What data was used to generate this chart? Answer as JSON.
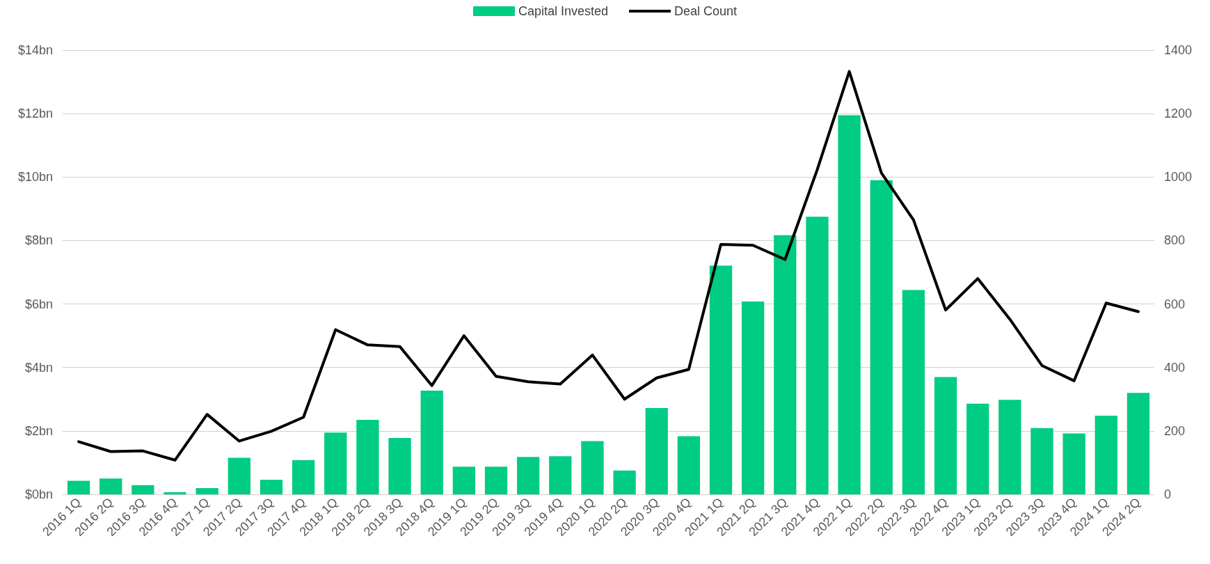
{
  "chart_data": {
    "type": "bar",
    "categories": [
      "2016 1Q",
      "2016 2Q",
      "2016 3Q",
      "2016 4Q",
      "2017 1Q",
      "2017 2Q",
      "2017 3Q",
      "2017 4Q",
      "2018 1Q",
      "2018 2Q",
      "2018 3Q",
      "2018 4Q",
      "2019 1Q",
      "2019 2Q",
      "2019 3Q",
      "2019 4Q",
      "2020 1Q",
      "2020 2Q",
      "2020 3Q",
      "2020 4Q",
      "2021 1Q",
      "2021 2Q",
      "2021 3Q",
      "2021 4Q",
      "2022 1Q",
      "2022 2Q",
      "2022 3Q",
      "2022 4Q",
      "2023 1Q",
      "2023 2Q",
      "2023 3Q",
      "2023 4Q",
      "2024 1Q",
      "2024 2Q"
    ],
    "series": [
      {
        "name": "Capital Invested",
        "color": "#00cc83",
        "values": [
          0.43,
          0.5,
          0.29,
          0.07,
          0.2,
          1.15,
          0.46,
          1.08,
          1.95,
          2.35,
          1.78,
          3.27,
          0.87,
          0.87,
          1.18,
          1.2,
          1.68,
          0.75,
          2.72,
          1.83,
          7.21,
          6.08,
          8.17,
          8.75,
          11.95,
          9.9,
          6.44,
          3.7,
          2.86,
          2.98,
          2.09,
          1.92,
          2.48,
          3.2
        ]
      },
      {
        "name": "Deal Count",
        "type": "line",
        "axis": "y2",
        "color": "#000000",
        "values": [
          166,
          135,
          137,
          108,
          252,
          168,
          199,
          243,
          519,
          471,
          466,
          343,
          500,
          372,
          355,
          348,
          439,
          300,
          367,
          394,
          788,
          785,
          740,
          1023,
          1333,
          1013,
          865,
          581,
          680,
          552,
          406,
          358,
          603,
          576
        ]
      }
    ],
    "ylim": [
      0,
      14
    ],
    "yticks": [
      {
        "value": 0,
        "label": "$0bn"
      },
      {
        "value": 2,
        "label": "$2bn"
      },
      {
        "value": 4,
        "label": "$4bn"
      },
      {
        "value": 6,
        "label": "$6bn"
      },
      {
        "value": 8,
        "label": "$8bn"
      },
      {
        "value": 10,
        "label": "$10bn"
      },
      {
        "value": 12,
        "label": "$12bn"
      },
      {
        "value": 14,
        "label": "$14bn"
      }
    ],
    "y2lim": [
      0,
      1400
    ],
    "y2ticks": [
      0,
      200,
      400,
      600,
      800,
      1000,
      1200,
      1400
    ],
    "grid": "y",
    "legend": "top",
    "marker": "none",
    "line_style": "solid"
  }
}
